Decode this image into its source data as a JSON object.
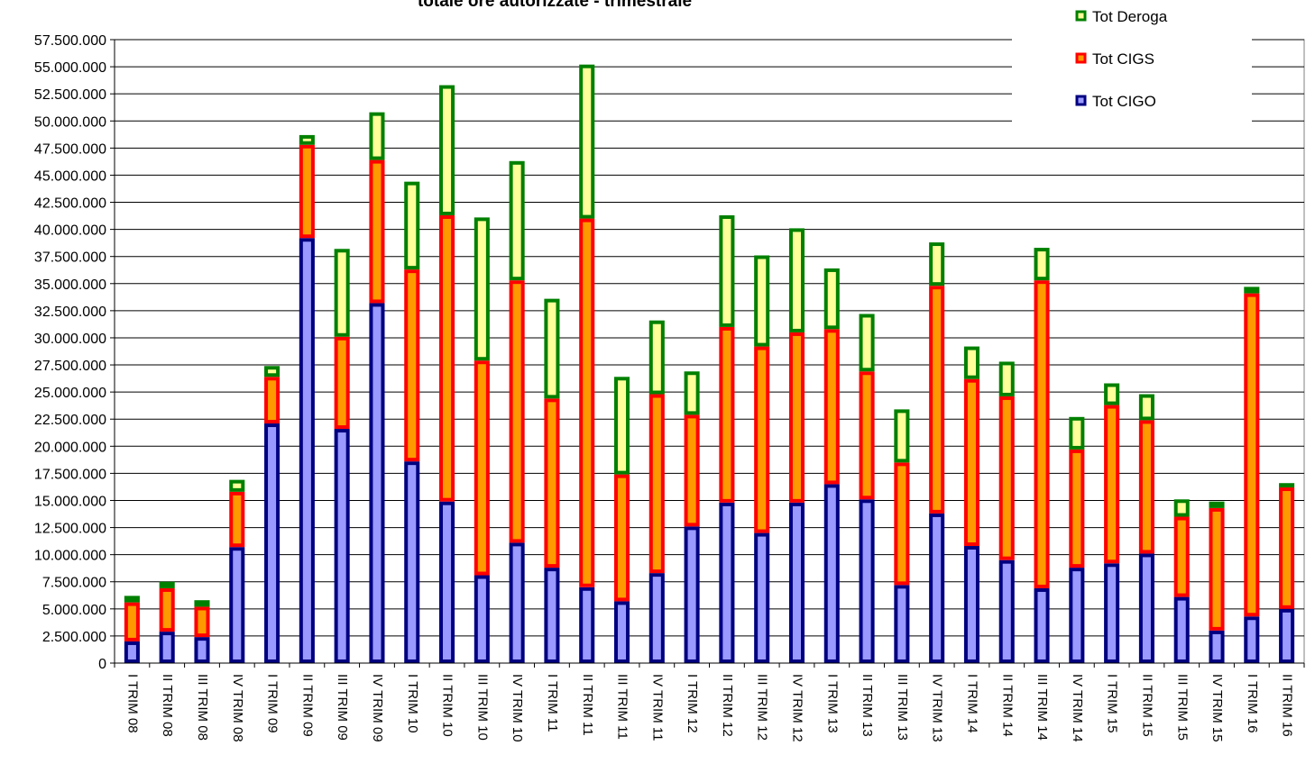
{
  "chart_data": {
    "type": "bar",
    "stacked": true,
    "title": "totale ore autorizzate - trimestrale",
    "xlabel": "",
    "ylabel": "",
    "ylim": [
      0,
      57500000
    ],
    "ytick_step": 2500000,
    "ytick_labels": [
      "0",
      "2.500.000",
      "5.000.000",
      "7.500.000",
      "10.000.000",
      "12.500.000",
      "15.000.000",
      "17.500.000",
      "20.000.000",
      "22.500.000",
      "25.000.000",
      "27.500.000",
      "30.000.000",
      "32.500.000",
      "35.000.000",
      "37.500.000",
      "40.000.000",
      "42.500.000",
      "45.000.000",
      "47.500.000",
      "50.000.000",
      "52.500.000",
      "55.000.000",
      "57.500.000"
    ],
    "grid": true,
    "legend_position": "top-right",
    "categories": [
      "I TRIM 08",
      "II TRIM 08",
      "III TRIM 08",
      "IV TRIM 08",
      "I TRIM 09",
      "II TRIM 09",
      "III TRIM 09",
      "IV TRIM 09",
      "I TRIM 10",
      "II TRIM 10",
      "III TRIM 10",
      "IV TRIM 10",
      "I TRIM 11",
      "II TRIM 11",
      "III TRIM 11",
      "IV TRIM 11",
      "I TRIM 12",
      "II TRIM 12",
      "III TRIM 12",
      "IV TRIM 12",
      "I TRIM 13",
      "II TRIM 13",
      "III TRIM 13",
      "IV TRIM 13",
      "I TRIM 14",
      "II TRIM 14",
      "III TRIM 14",
      "IV TRIM 14",
      "I TRIM 15",
      "II TRIM 15",
      "III TRIM 15",
      "IV TRIM 15",
      "I TRIM 16",
      "II TRIM 16"
    ],
    "series": [
      {
        "name": "Tot CIGO",
        "fill": "#9999ff",
        "stroke": "#000080",
        "values": [
          2000000,
          2900000,
          2400000,
          10700000,
          22100000,
          39200000,
          21600000,
          33200000,
          18600000,
          14900000,
          8100000,
          11100000,
          8800000,
          7000000,
          5700000,
          8300000,
          12600000,
          14800000,
          12000000,
          14800000,
          16500000,
          15100000,
          7200000,
          13800000,
          10800000,
          9500000,
          6900000,
          8800000,
          9200000,
          10100000,
          6100000,
          3000000,
          4300000,
          5000000
        ]
      },
      {
        "name": "Tot CIGS",
        "fill": "#ff9900",
        "stroke": "#ff0000",
        "values": [
          3600000,
          4000000,
          2800000,
          5100000,
          4300000,
          8600000,
          8500000,
          13200000,
          17700000,
          26400000,
          19800000,
          24200000,
          15600000,
          34000000,
          11700000,
          16500000,
          10300000,
          16200000,
          17200000,
          15700000,
          14300000,
          11800000,
          11300000,
          21000000,
          15400000,
          15100000,
          28400000,
          10900000,
          14600000,
          12300000,
          7400000,
          11300000,
          29800000,
          11200000
        ]
      },
      {
        "name": "Tot Deroga",
        "fill": "#ffff99",
        "stroke": "#008000",
        "values": [
          600000,
          600000,
          600000,
          1100000,
          1000000,
          900000,
          8100000,
          4400000,
          8100000,
          12000000,
          13200000,
          11000000,
          9200000,
          14200000,
          9000000,
          6800000,
          4000000,
          10300000,
          8400000,
          9600000,
          5600000,
          5300000,
          4900000,
          4000000,
          3000000,
          3200000,
          3000000,
          3000000,
          2000000,
          2400000,
          1600000,
          600000,
          600000,
          400000
        ]
      }
    ]
  }
}
